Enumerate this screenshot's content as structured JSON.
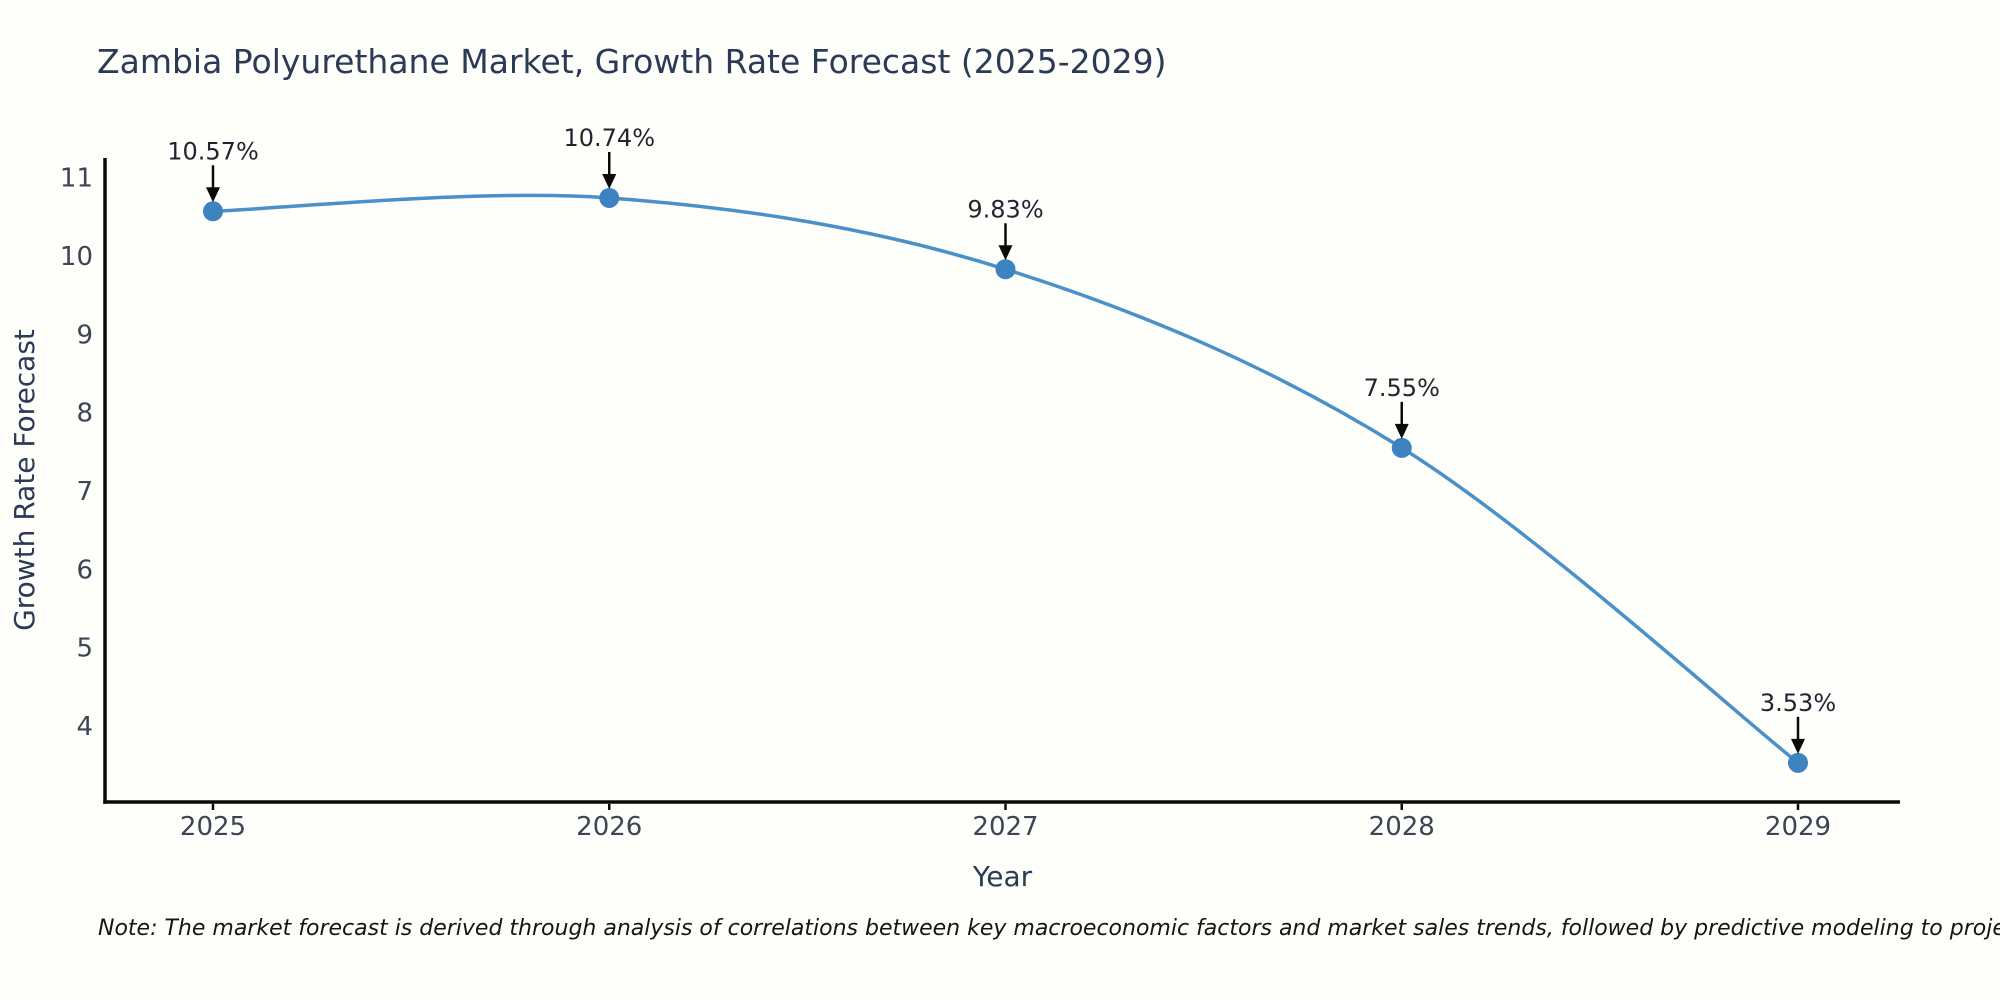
{
  "chart_data": {
    "type": "line",
    "title": "Zambia Polyurethane Market, Growth Rate Forecast (2025-2029)",
    "xlabel": "Year",
    "ylabel": "Growth Rate Forecast",
    "x": [
      2025,
      2026,
      2027,
      2028,
      2029
    ],
    "values": [
      10.57,
      10.74,
      9.83,
      7.55,
      3.53
    ],
    "point_labels": [
      "10.57%",
      "10.74%",
      "9.83%",
      "7.55%",
      "3.53%"
    ],
    "y_ticks": [
      4,
      5,
      6,
      7,
      8,
      9,
      10,
      11
    ],
    "ylim": [
      3.03,
      11.25
    ],
    "grid": false,
    "legend_position": "none",
    "smooth": true,
    "annotation_style": "value-above-with-down-arrow",
    "colors": {
      "line": "#4a90c9",
      "marker": "#3c83bf",
      "title": "#2b3a55",
      "axis_label": "#2b3a55",
      "tick_label": "#3d4454",
      "annotation_text": "#1f2430",
      "arrow": "#0a0a0a",
      "axis_spine": "#0a0a0a",
      "background": "#fefefb"
    }
  },
  "note": {
    "text": "Note: The market forecast is derived through analysis of correlations between key macroeconomic factors and market sales trends, followed by predictive modeling to project future sales."
  }
}
